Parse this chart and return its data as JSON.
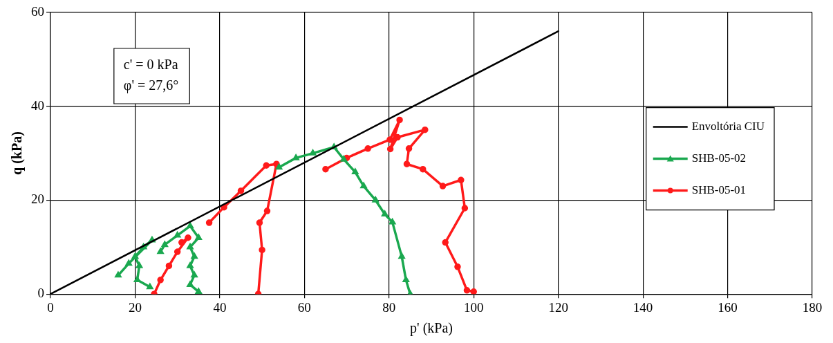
{
  "chart_data": {
    "type": "line",
    "xlabel": "p' (kPa)",
    "ylabel": "q (kPa)",
    "xlim": [
      0,
      180
    ],
    "xticks": [
      0,
      20,
      40,
      60,
      80,
      100,
      120,
      140,
      160,
      180
    ],
    "ylim": [
      0,
      60
    ],
    "yticks": [
      0,
      20,
      40,
      60
    ],
    "grid": true,
    "legend": "right",
    "annotations": [
      "c' = 0 kPa",
      "φ' = 27,6°"
    ],
    "series": [
      {
        "name": "Envoltória CIU",
        "color": "#000000",
        "marker": "none",
        "x": [
          0,
          120
        ],
        "values": [
          0,
          56
        ]
      },
      {
        "name": "SHB-05-02",
        "color": "#1aa84f",
        "marker": "triangle",
        "x": [
          23.5,
          20.5,
          21,
          20,
          22,
          24,
          18.5,
          16,
          null,
          35,
          33,
          34,
          33,
          34,
          33,
          35,
          33,
          30,
          27,
          26,
          null,
          85,
          84,
          83,
          80.8,
          79,
          76.8,
          74,
          72,
          69.3,
          67,
          62,
          58,
          54
        ],
        "values": [
          1.5,
          3,
          6,
          8,
          10,
          11.5,
          6.5,
          4,
          null,
          0.5,
          2,
          4,
          6,
          8,
          10,
          12,
          14.5,
          12.5,
          10.5,
          9,
          null,
          0,
          3,
          8,
          15.3,
          17,
          20,
          23,
          26,
          28.7,
          31.3,
          30,
          29,
          27
        ]
      },
      {
        "name": "SHB-05-01",
        "color": "#ff1a1a",
        "marker": "circle",
        "x": [
          24.5,
          26,
          28,
          30,
          32.5,
          31,
          null,
          49.1,
          50,
          49.4,
          51.2,
          53.4,
          51,
          45,
          41,
          37.5,
          null,
          65,
          70,
          75,
          80.2,
          82.5,
          80.3,
          82,
          88.5,
          84.7,
          84.2,
          88,
          92.7,
          97,
          97.9,
          93.3,
          96.2,
          98.4,
          100
        ],
        "values": [
          0,
          3,
          6,
          9,
          12,
          11,
          null,
          0,
          9.4,
          15.2,
          17.7,
          27.7,
          27.4,
          22,
          18.5,
          15.2,
          null,
          26.6,
          29,
          31,
          32.9,
          37.1,
          30.9,
          33.4,
          35,
          31,
          27.7,
          26.6,
          23,
          24.3,
          18.3,
          11,
          5.8,
          0.8,
          0.5
        ]
      }
    ]
  }
}
